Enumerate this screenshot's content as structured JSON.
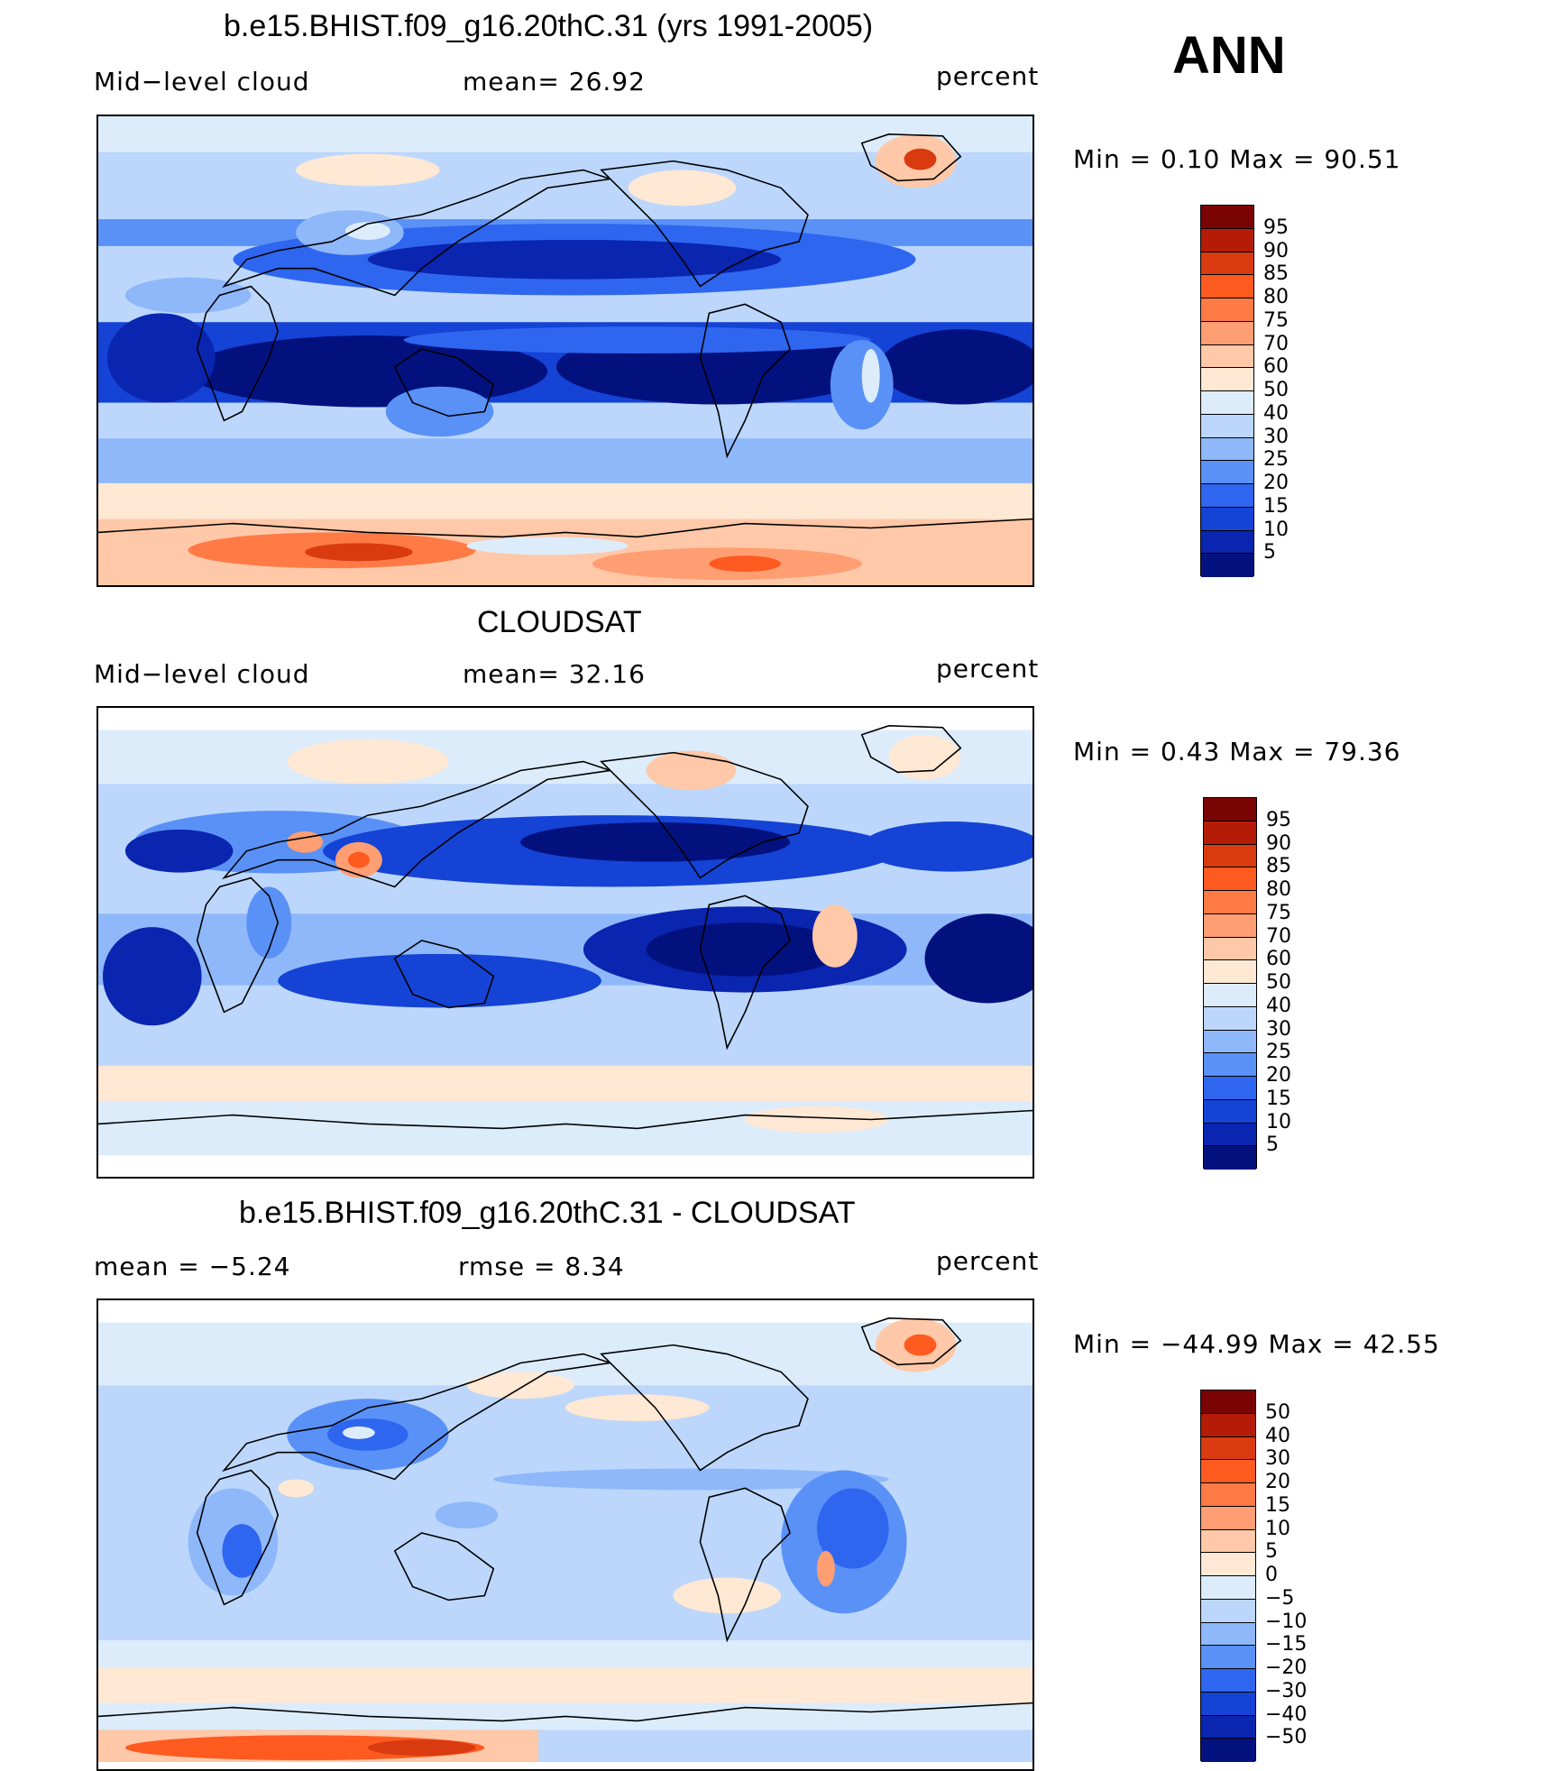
{
  "season": "ANN",
  "panels": [
    {
      "title": "b.e15.BHIST.f09_g16.20thC.31 (yrs 1991-2005)",
      "left_label": "Mid−level  cloud",
      "center_label": "mean=   26.92",
      "units": "percent",
      "minmax": "Min  =     0.10  Max  =    90.51",
      "colorbar_colors": [
        "#7a0403",
        "#b51c08",
        "#d93a10",
        "#ff5a1f",
        "#ff7a45",
        "#ff9e73",
        "#ffc8a8",
        "#ffe8d4",
        "#dcecfb",
        "#bcd7fb",
        "#8fb8fb",
        "#5a91f7",
        "#2f66ef",
        "#1443d6",
        "#0a25b0",
        "#03117f"
      ],
      "colorbar_labels": [
        "95",
        "90",
        "85",
        "80",
        "75",
        "70",
        "60",
        "50",
        "40",
        "30",
        "25",
        "20",
        "15",
        "10",
        "5"
      ]
    },
    {
      "title": "CLOUDSAT",
      "left_label": "Mid−level  cloud",
      "center_label": "mean=   32.16",
      "units": "percent",
      "minmax": "Min  =     0.43  Max  =    79.36",
      "colorbar_colors": [
        "#7a0403",
        "#b51c08",
        "#d93a10",
        "#ff5a1f",
        "#ff7a45",
        "#ff9e73",
        "#ffc8a8",
        "#ffe8d4",
        "#dcecfb",
        "#bcd7fb",
        "#8fb8fb",
        "#5a91f7",
        "#2f66ef",
        "#1443d6",
        "#0a25b0",
        "#03117f"
      ],
      "colorbar_labels": [
        "95",
        "90",
        "85",
        "80",
        "75",
        "70",
        "60",
        "50",
        "40",
        "30",
        "25",
        "20",
        "15",
        "10",
        "5"
      ]
    },
    {
      "title": "b.e15.BHIST.f09_g16.20thC.31 - CLOUDSAT",
      "left_label": "mean  =    −5.24",
      "center_label": "rmse  =     8.34",
      "units": "percent",
      "minmax": "Min  = −44.99  Max  =    42.55",
      "colorbar_colors": [
        "#7a0403",
        "#b51c08",
        "#d93a10",
        "#ff5a1f",
        "#ff7a45",
        "#ff9e73",
        "#ffc8a8",
        "#ffe8d4",
        "#dcecfb",
        "#bcd7fb",
        "#8fb8fb",
        "#5a91f7",
        "#2f66ef",
        "#1443d6",
        "#0a25b0",
        "#03117f"
      ],
      "colorbar_labels": [
        "50",
        "40",
        "30",
        "20",
        "15",
        "10",
        "5",
        "0",
        "−5",
        "−10",
        "−15",
        "−20",
        "−30",
        "−40",
        "−50"
      ]
    }
  ]
}
